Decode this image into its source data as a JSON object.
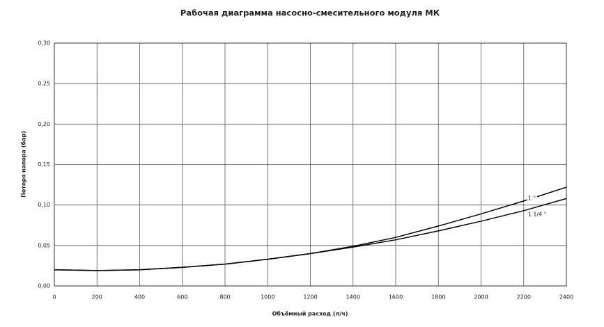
{
  "chart_data": {
    "type": "line",
    "title": "Рабочая диаграмма насосно-смесительного модуля МК",
    "x_label": "Объёмный расход  (л/ч)",
    "y_label": "Потеря напора  (бар)",
    "x": [
      0,
      200,
      400,
      600,
      800,
      1000,
      1200,
      1400,
      1600,
      1800,
      2000,
      2200,
      2400
    ],
    "series": [
      {
        "name": "1 \"",
        "color": "#000000",
        "values": [
          0.02,
          0.019,
          0.02,
          0.023,
          0.027,
          0.033,
          0.04,
          0.049,
          0.06,
          0.074,
          0.089,
          0.105,
          0.122
        ]
      },
      {
        "name": "1 1/4 \"",
        "color": "#000000",
        "values": [
          0.02,
          0.019,
          0.02,
          0.023,
          0.027,
          0.033,
          0.04,
          0.048,
          0.057,
          0.068,
          0.08,
          0.093,
          0.108
        ]
      }
    ],
    "xlim": [
      0,
      2400
    ],
    "xticks": [
      0,
      200,
      400,
      600,
      800,
      1000,
      1200,
      1400,
      1600,
      1800,
      2000,
      2200,
      2400
    ],
    "ylim": [
      0,
      0.3
    ],
    "yticks": [
      {
        "value": 0,
        "label": "0,00"
      },
      {
        "value": 0.05,
        "label": "0,05"
      },
      {
        "value": 0.1,
        "label": "0,10"
      },
      {
        "value": 0.15,
        "label": "0,15"
      },
      {
        "value": 0.2,
        "label": "0,20"
      },
      {
        "value": 0.25,
        "label": "0,25"
      },
      {
        "value": 0.3,
        "label": "0,30"
      }
    ],
    "grid": true
  }
}
